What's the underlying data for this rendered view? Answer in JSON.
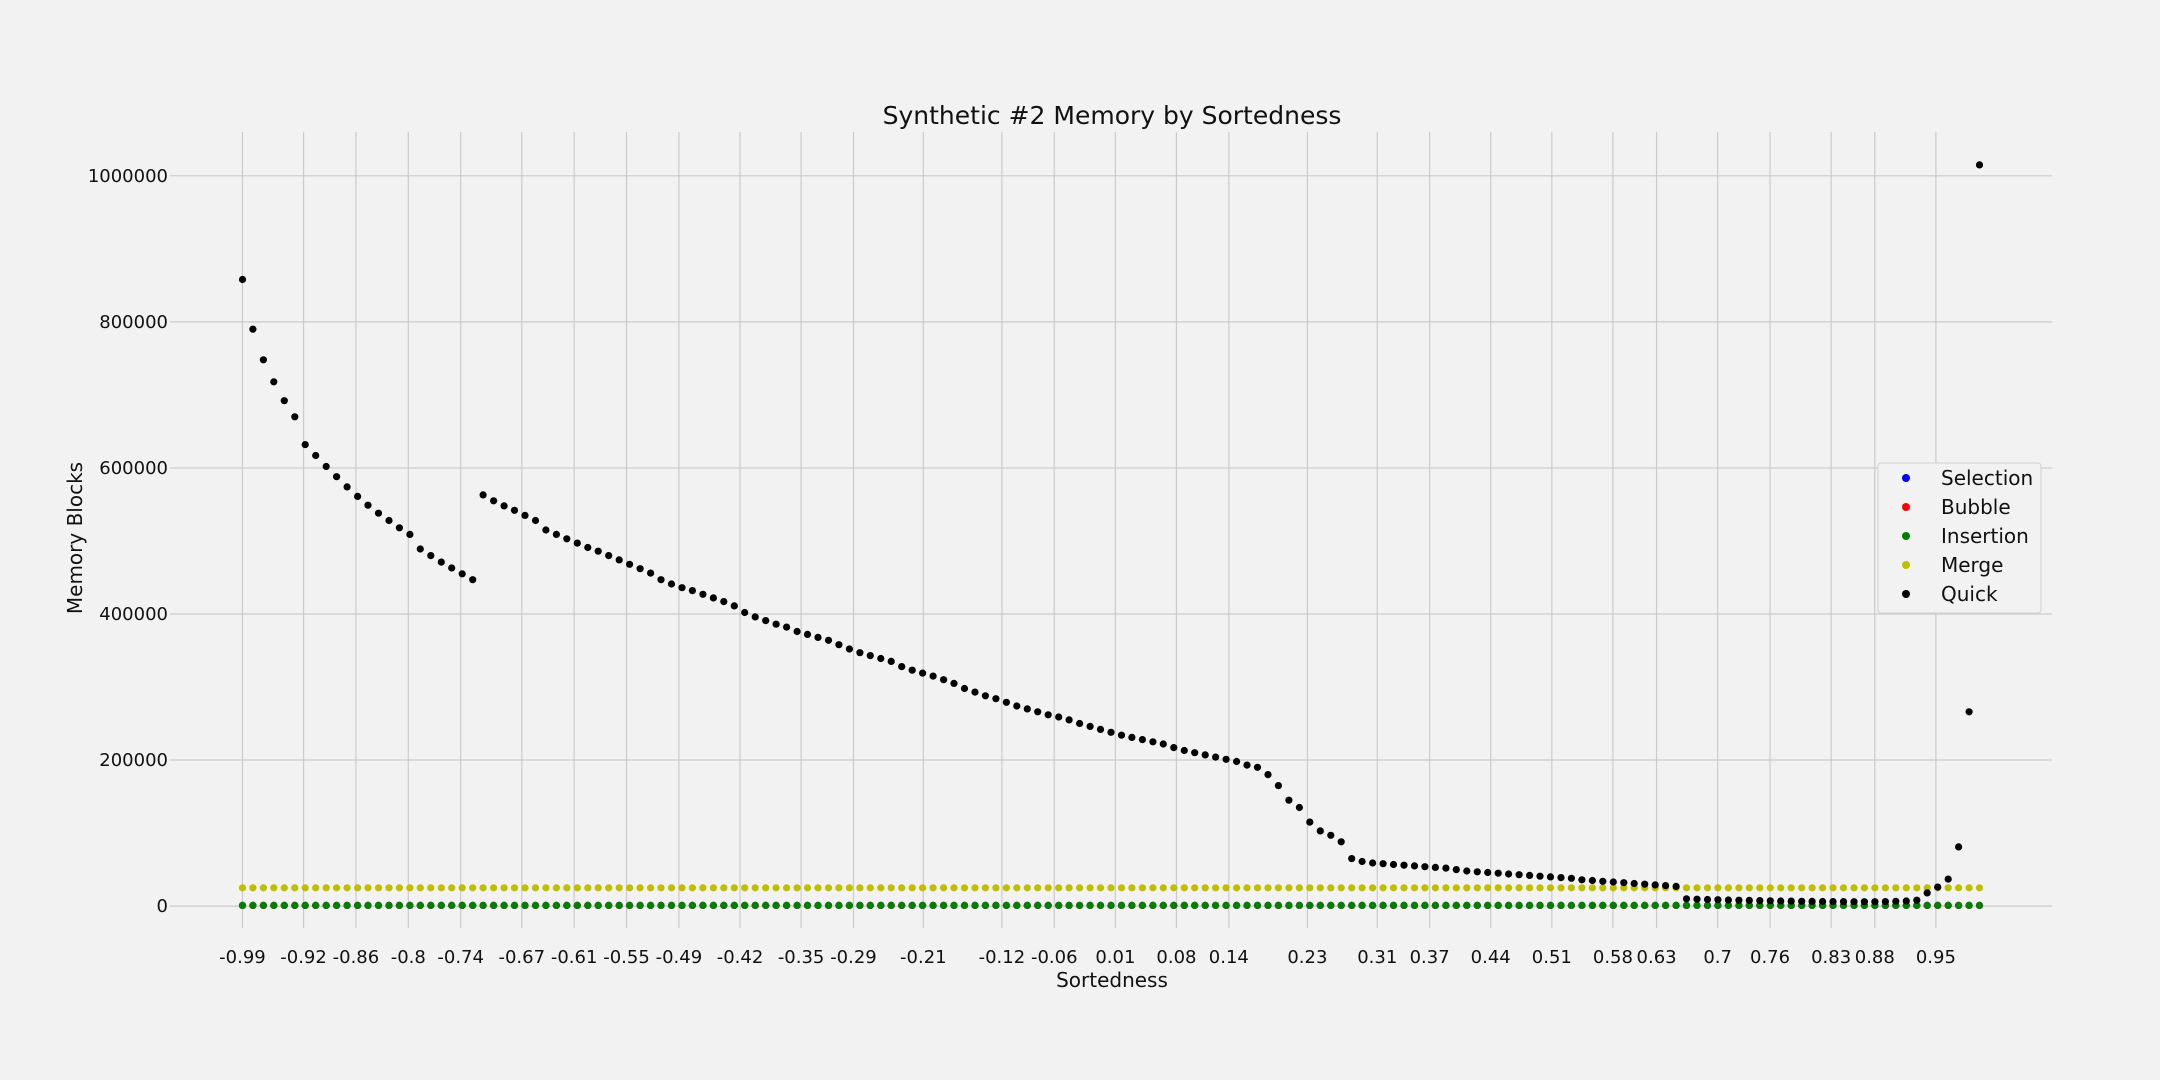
{
  "chart_data": {
    "type": "scatter",
    "title": "Synthetic #2 Memory by Sortedness",
    "xlabel": "Sortedness",
    "ylabel": "Memory Blocks",
    "xlim": [
      -1.073,
      1.083
    ],
    "ylim": [
      -30000,
      1060000
    ],
    "x_ticks": [
      -0.99,
      -0.92,
      -0.86,
      -0.8,
      -0.74,
      -0.67,
      -0.61,
      -0.55,
      -0.49,
      -0.42,
      -0.35,
      -0.29,
      -0.21,
      -0.12,
      -0.06,
      0.01,
      0.08,
      0.14,
      0.23,
      0.31,
      0.37,
      0.44,
      0.51,
      0.58,
      0.63,
      0.7,
      0.76,
      0.83,
      0.88,
      0.95
    ],
    "x_tick_labels": [
      "-0.99",
      "-0.92",
      "-0.86",
      "-0.8",
      "-0.74",
      "-0.67",
      "-0.61",
      "-0.55",
      "-0.49",
      "-0.42",
      "-0.35",
      "-0.29",
      "-0.21",
      "-0.12",
      "-0.06",
      "0.01",
      "0.08",
      "0.14",
      "0.23",
      "0.31",
      "0.37",
      "0.44",
      "0.51",
      "0.58",
      "0.63",
      "0.7",
      "0.76",
      "0.83",
      "0.88",
      "0.95"
    ],
    "y_ticks": [
      0,
      200000,
      400000,
      600000,
      800000,
      1000000
    ],
    "y_tick_labels": [
      "0",
      "200000",
      "400000",
      "600000",
      "800000",
      "1000000"
    ],
    "grid": true,
    "legend_position": "center-right",
    "x_start": -0.99,
    "x_end": 1.0,
    "series": [
      {
        "name": "Selection",
        "color": "#0000ff",
        "constant": 1000
      },
      {
        "name": "Bubble",
        "color": "#ff0000",
        "constant": 1000
      },
      {
        "name": "Insertion",
        "color": "#008000",
        "constant": 1000
      },
      {
        "name": "Merge",
        "color": "#bfbf00",
        "constant": 25000
      },
      {
        "name": "Quick",
        "color": "#000000",
        "values": [
          858000,
          790000,
          748000,
          718000,
          692000,
          670000,
          632000,
          617000,
          602000,
          588000,
          574000,
          561000,
          549000,
          538000,
          528000,
          518000,
          509000,
          489000,
          480000,
          471000,
          463000,
          455000,
          447000,
          563000,
          555000,
          548000,
          542000,
          535000,
          528000,
          515000,
          509000,
          503000,
          497000,
          491000,
          486000,
          480000,
          474000,
          468000,
          462000,
          456000,
          447000,
          441000,
          436000,
          432000,
          427000,
          422000,
          417000,
          411000,
          402000,
          396000,
          391000,
          386000,
          382000,
          376000,
          372000,
          368000,
          364000,
          358000,
          352000,
          347000,
          343000,
          339000,
          335000,
          328000,
          323000,
          319000,
          315000,
          310000,
          305000,
          298000,
          293000,
          288000,
          284000,
          279000,
          274000,
          270000,
          266000,
          262000,
          259000,
          255000,
          250000,
          246000,
          242000,
          238000,
          234000,
          231000,
          228000,
          225000,
          222000,
          217000,
          213000,
          210000,
          207000,
          204000,
          201000,
          198000,
          193000,
          190000,
          180000,
          165000,
          145000,
          135000,
          115000,
          103000,
          97000,
          88000,
          65000,
          61000,
          59000,
          58000,
          57000,
          56000,
          55000,
          54000,
          53000,
          52000,
          50000,
          48000,
          47000,
          46000,
          45000,
          44000,
          43000,
          42000,
          41000,
          40000,
          39000,
          38000,
          36000,
          35000,
          34000,
          33000,
          32000,
          31000,
          30000,
          29000,
          28000,
          27000,
          10000,
          9500,
          9000,
          8700,
          8400,
          8100,
          7800,
          7500,
          7200,
          7000,
          6800,
          6600,
          6400,
          6300,
          6200,
          6100,
          6000,
          6000,
          6000,
          6200,
          6500,
          7000,
          8000,
          18000,
          26000,
          37000,
          81000,
          266000,
          1015000
        ]
      }
    ]
  }
}
